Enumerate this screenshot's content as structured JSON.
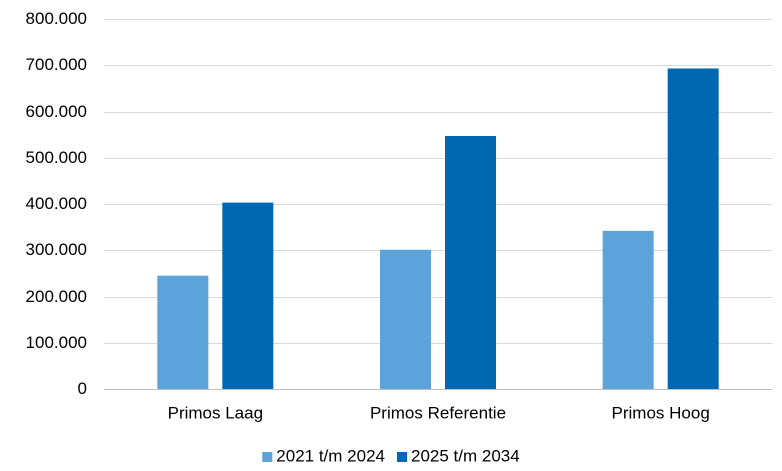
{
  "chart_data": {
    "type": "bar",
    "categories": [
      "Primos Laag",
      "Primos Referentie",
      "Primos Hoog"
    ],
    "series": [
      {
        "name": "2021 t/m 2024",
        "color": "#5BA3D9",
        "values": [
          245000,
          301000,
          342000
        ]
      },
      {
        "name": "2025 t/m 2034",
        "color": "#0067B1",
        "values": [
          403000,
          547000,
          693000
        ]
      }
    ],
    "ylim": [
      0,
      800000
    ],
    "yticks": [
      0,
      100000,
      200000,
      300000,
      400000,
      500000,
      600000,
      700000,
      800000
    ],
    "ytick_labels": [
      "0",
      "100.000",
      "200.000",
      "300.000",
      "400.000",
      "500.000",
      "600.000",
      "700.000",
      "800.000"
    ],
    "grid": true,
    "legend_position": "bottom"
  }
}
